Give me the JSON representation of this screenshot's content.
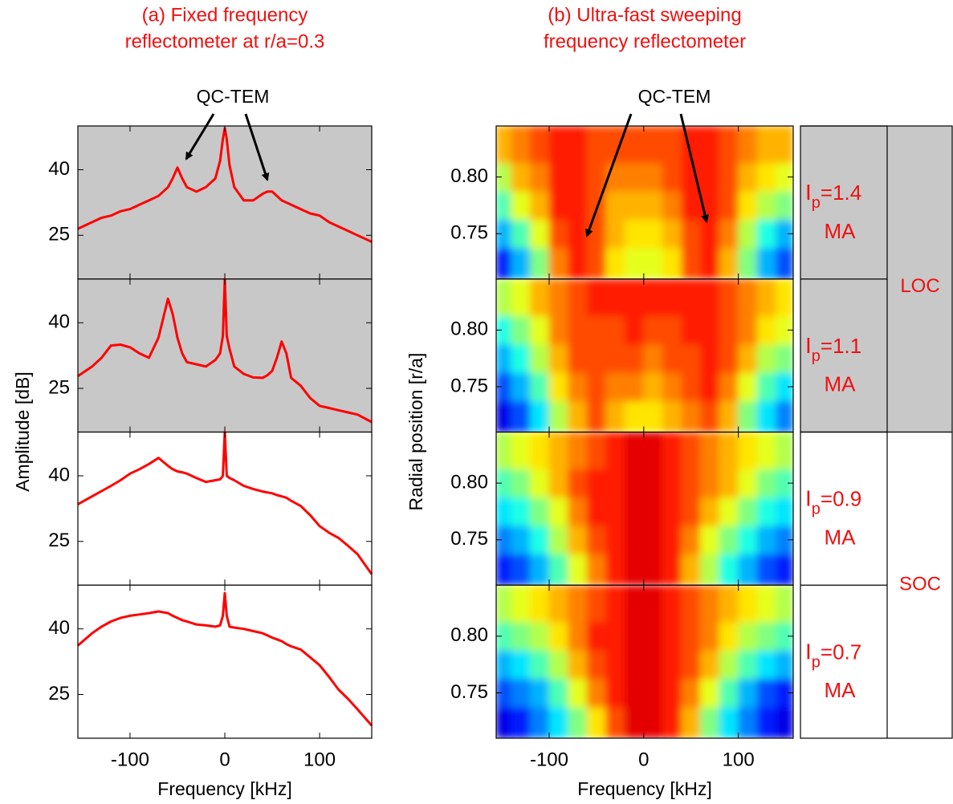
{
  "chart_data": [
    {
      "type": "line",
      "title": [
        "(a) Fixed frequency",
        "reflectometer at r/a=0.3"
      ],
      "xlabel": "Frequency [kHz]",
      "ylabel": "Amplitude [dB]",
      "annotation": "QC-TEM",
      "xlim": [
        -155,
        155
      ],
      "xticks": [
        -100,
        0,
        100
      ],
      "ylim": [
        15,
        50
      ],
      "yticks": [
        25,
        40
      ],
      "color": "#ff0000",
      "x": [
        -155,
        -140,
        -130,
        -120,
        -110,
        -100,
        -90,
        -80,
        -70,
        -60,
        -55,
        -50,
        -45,
        -40,
        -30,
        -20,
        -10,
        -5,
        -2,
        0,
        2,
        5,
        10,
        20,
        30,
        40,
        45,
        50,
        55,
        60,
        65,
        70,
        80,
        90,
        100,
        110,
        120,
        130,
        140,
        155
      ],
      "panels": [
        {
          "background": "#c8c8c8",
          "values": [
            26.5,
            28,
            29,
            29.5,
            30.5,
            31,
            32,
            33,
            34,
            36,
            38,
            40.5,
            38,
            36,
            35,
            36,
            38,
            42,
            47,
            49.5,
            47,
            41,
            36,
            33,
            33,
            34.5,
            35,
            35,
            34,
            33,
            32.5,
            32,
            31,
            30,
            29.5,
            28,
            27,
            26,
            25,
            23.5
          ]
        },
        {
          "background": "#c8c8c8",
          "values": [
            27.8,
            30,
            32,
            34.8,
            35,
            34.4,
            33,
            32,
            36.6,
            45.5,
            42,
            36.6,
            33,
            31,
            30.5,
            30,
            31.5,
            33,
            37,
            50,
            37,
            34,
            30,
            28.3,
            27.5,
            27.4,
            28,
            29,
            32,
            35.7,
            33,
            27.4,
            25.6,
            22.8,
            21,
            20.5,
            20,
            19.5,
            19,
            17.3
          ]
        },
        {
          "background": "#ffffff",
          "values": [
            33.5,
            35.3,
            36.5,
            37.7,
            39,
            40.5,
            41.5,
            42.7,
            44.1,
            42.3,
            41.5,
            41,
            40.8,
            40.5,
            39.5,
            38.6,
            39,
            39.2,
            40,
            50,
            40,
            39.5,
            39,
            37.7,
            37,
            36.4,
            36.2,
            36,
            35.6,
            35.3,
            35,
            34.3,
            33.1,
            31,
            28.5,
            27,
            25.8,
            24,
            22.1,
            17.5
          ]
        },
        {
          "background": "#ffffff",
          "values": [
            36.2,
            39,
            40.5,
            41.7,
            42.5,
            43,
            43.3,
            43.6,
            44,
            43.6,
            43,
            42.5,
            42,
            41.7,
            41,
            40.8,
            40.5,
            40.8,
            43,
            48.2,
            43,
            40.5,
            40.3,
            40,
            39.5,
            39,
            38.5,
            38,
            37.6,
            37.2,
            36.5,
            36,
            35.3,
            33.5,
            31.7,
            29,
            26.1,
            24,
            21.6,
            17.9
          ]
        }
      ]
    },
    {
      "type": "heatmap",
      "title": [
        "(b) Ultra-fast sweeping",
        "frequency reflectometer"
      ],
      "xlabel": "Frequency [kHz]",
      "ylabel": "Radial position [r/a]",
      "annotation": "QC-TEM",
      "xlim": [
        -156,
        158
      ],
      "xticks": [
        -100,
        0,
        100
      ],
      "ylim": [
        0.71,
        0.845
      ],
      "yticks": [
        0.75,
        {
          "value": 0.8,
          "label": "0.80"
        }
      ],
      "colormap": "jet",
      "x": [
        -150,
        -130,
        -110,
        -90,
        -70,
        -50,
        -30,
        -10,
        10,
        30,
        50,
        70,
        90,
        110,
        130,
        150
      ],
      "y": [
        0.725,
        0.75,
        0.775,
        0.8,
        0.825
      ],
      "panels": [
        {
          "z": [
            [
              0.15,
              0.3,
              0.5,
              0.75,
              0.85,
              0.8,
              0.65,
              0.6,
              0.6,
              0.65,
              0.8,
              0.85,
              0.7,
              0.5,
              0.3,
              0.2
            ],
            [
              0.3,
              0.45,
              0.6,
              0.8,
              0.85,
              0.8,
              0.7,
              0.65,
              0.65,
              0.7,
              0.8,
              0.85,
              0.75,
              0.55,
              0.4,
              0.3
            ],
            [
              0.45,
              0.6,
              0.7,
              0.85,
              0.85,
              0.8,
              0.7,
              0.7,
              0.7,
              0.75,
              0.85,
              0.85,
              0.8,
              0.65,
              0.55,
              0.5
            ],
            [
              0.55,
              0.7,
              0.75,
              0.85,
              0.85,
              0.8,
              0.75,
              0.75,
              0.75,
              0.8,
              0.85,
              0.85,
              0.8,
              0.7,
              0.65,
              0.6
            ],
            [
              0.7,
              0.75,
              0.8,
              0.85,
              0.85,
              0.8,
              0.8,
              0.8,
              0.8,
              0.8,
              0.85,
              0.85,
              0.8,
              0.75,
              0.7,
              0.7
            ]
          ]
        },
        {
          "z": [
            [
              0.1,
              0.2,
              0.35,
              0.55,
              0.7,
              0.8,
              0.7,
              0.65,
              0.65,
              0.7,
              0.75,
              0.8,
              0.7,
              0.5,
              0.35,
              0.25
            ],
            [
              0.2,
              0.3,
              0.45,
              0.65,
              0.75,
              0.8,
              0.75,
              0.75,
              0.7,
              0.75,
              0.8,
              0.85,
              0.75,
              0.6,
              0.45,
              0.35
            ],
            [
              0.3,
              0.4,
              0.55,
              0.7,
              0.8,
              0.8,
              0.8,
              0.8,
              0.75,
              0.8,
              0.8,
              0.85,
              0.8,
              0.7,
              0.55,
              0.5
            ],
            [
              0.4,
              0.5,
              0.6,
              0.75,
              0.8,
              0.8,
              0.8,
              0.85,
              0.8,
              0.8,
              0.85,
              0.85,
              0.8,
              0.75,
              0.65,
              0.6
            ],
            [
              0.55,
              0.6,
              0.7,
              0.75,
              0.8,
              0.85,
              0.85,
              0.85,
              0.85,
              0.85,
              0.85,
              0.85,
              0.8,
              0.75,
              0.7,
              0.65
            ]
          ]
        },
        {
          "z": [
            [
              0.15,
              0.2,
              0.3,
              0.45,
              0.6,
              0.75,
              0.85,
              0.9,
              0.9,
              0.85,
              0.7,
              0.55,
              0.4,
              0.3,
              0.2,
              0.15
            ],
            [
              0.25,
              0.3,
              0.4,
              0.55,
              0.7,
              0.8,
              0.85,
              0.9,
              0.9,
              0.85,
              0.75,
              0.6,
              0.5,
              0.4,
              0.3,
              0.25
            ],
            [
              0.35,
              0.4,
              0.5,
              0.6,
              0.75,
              0.85,
              0.85,
              0.9,
              0.9,
              0.85,
              0.8,
              0.7,
              0.6,
              0.5,
              0.4,
              0.35
            ],
            [
              0.45,
              0.5,
              0.6,
              0.7,
              0.8,
              0.85,
              0.85,
              0.9,
              0.9,
              0.85,
              0.8,
              0.75,
              0.7,
              0.6,
              0.5,
              0.45
            ],
            [
              0.55,
              0.6,
              0.65,
              0.7,
              0.75,
              0.8,
              0.85,
              0.9,
              0.9,
              0.85,
              0.8,
              0.75,
              0.7,
              0.65,
              0.6,
              0.55
            ]
          ]
        },
        {
          "z": [
            [
              0.1,
              0.15,
              0.25,
              0.35,
              0.5,
              0.65,
              0.8,
              0.9,
              0.9,
              0.85,
              0.7,
              0.5,
              0.35,
              0.25,
              0.15,
              0.1
            ],
            [
              0.2,
              0.25,
              0.3,
              0.45,
              0.6,
              0.75,
              0.85,
              0.9,
              0.9,
              0.85,
              0.75,
              0.6,
              0.45,
              0.3,
              0.2,
              0.15
            ],
            [
              0.3,
              0.35,
              0.45,
              0.55,
              0.7,
              0.8,
              0.85,
              0.9,
              0.9,
              0.85,
              0.8,
              0.7,
              0.55,
              0.45,
              0.35,
              0.3
            ],
            [
              0.45,
              0.5,
              0.55,
              0.65,
              0.75,
              0.85,
              0.85,
              0.9,
              0.9,
              0.85,
              0.8,
              0.75,
              0.65,
              0.55,
              0.5,
              0.45
            ],
            [
              0.55,
              0.6,
              0.65,
              0.7,
              0.75,
              0.8,
              0.85,
              0.9,
              0.9,
              0.85,
              0.8,
              0.75,
              0.7,
              0.65,
              0.6,
              0.55
            ]
          ]
        }
      ],
      "groups": [
        {
          "label": "LOC",
          "background": "#c8c8c8",
          "conditions": [
            {
              "symbol": "I",
              "subscript": "p",
              "value": "=1.4",
              "unit": "MA"
            },
            {
              "symbol": "I",
              "subscript": "p",
              "value": "=1.1",
              "unit": "MA"
            }
          ]
        },
        {
          "label": "SOC",
          "background": "#ffffff",
          "conditions": [
            {
              "symbol": "I",
              "subscript": "p",
              "value": "=0.9",
              "unit": "MA"
            },
            {
              "symbol": "I",
              "subscript": "p",
              "value": "=0.7",
              "unit": "MA"
            }
          ]
        }
      ]
    }
  ]
}
